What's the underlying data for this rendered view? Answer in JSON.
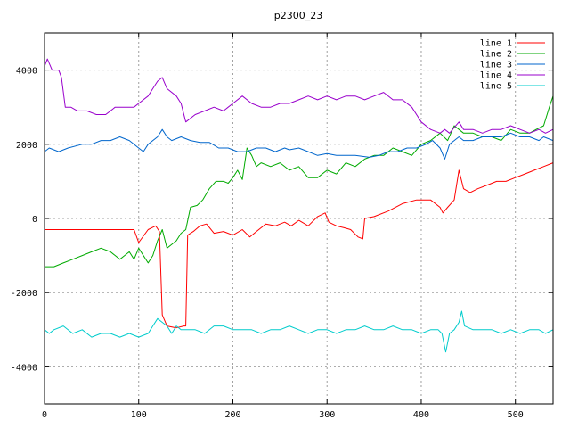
{
  "chart_data": {
    "type": "line",
    "title": "p2300_23",
    "xlabel": "",
    "ylabel": "",
    "xlim": [
      0,
      540
    ],
    "ylim": [
      -5000,
      5000
    ],
    "xticks": [
      0,
      100,
      200,
      300,
      400,
      500
    ],
    "yticks": [
      -4000,
      -2000,
      0,
      2000,
      4000
    ],
    "grid": true,
    "legend_position": "top-right",
    "series": [
      {
        "name": "line 1",
        "color": "#ff0000",
        "points": [
          [
            0,
            -300
          ],
          [
            95,
            -300
          ],
          [
            100,
            -650
          ],
          [
            110,
            -300
          ],
          [
            118,
            -200
          ],
          [
            122,
            -350
          ],
          [
            125,
            -2600
          ],
          [
            130,
            -2900
          ],
          [
            140,
            -2950
          ],
          [
            148,
            -2900
          ],
          [
            150,
            -2900
          ],
          [
            152,
            -450
          ],
          [
            158,
            -350
          ],
          [
            165,
            -200
          ],
          [
            172,
            -150
          ],
          [
            180,
            -400
          ],
          [
            190,
            -350
          ],
          [
            200,
            -450
          ],
          [
            210,
            -300
          ],
          [
            218,
            -500
          ],
          [
            225,
            -350
          ],
          [
            235,
            -150
          ],
          [
            245,
            -200
          ],
          [
            255,
            -100
          ],
          [
            262,
            -200
          ],
          [
            270,
            -50
          ],
          [
            280,
            -200
          ],
          [
            290,
            50
          ],
          [
            298,
            150
          ],
          [
            302,
            -100
          ],
          [
            310,
            -200
          ],
          [
            318,
            -250
          ],
          [
            325,
            -300
          ],
          [
            333,
            -500
          ],
          [
            338,
            -550
          ],
          [
            340,
            0
          ],
          [
            350,
            50
          ],
          [
            365,
            200
          ],
          [
            380,
            400
          ],
          [
            395,
            500
          ],
          [
            410,
            500
          ],
          [
            420,
            300
          ],
          [
            423,
            150
          ],
          [
            428,
            300
          ],
          [
            435,
            500
          ],
          [
            440,
            1300
          ],
          [
            445,
            800
          ],
          [
            452,
            700
          ],
          [
            460,
            800
          ],
          [
            470,
            900
          ],
          [
            480,
            1000
          ],
          [
            490,
            1000
          ],
          [
            500,
            1100
          ],
          [
            510,
            1200
          ],
          [
            520,
            1300
          ],
          [
            530,
            1400
          ],
          [
            540,
            1500
          ]
        ]
      },
      {
        "name": "line 2",
        "color": "#00aa00",
        "points": [
          [
            0,
            -1300
          ],
          [
            10,
            -1300
          ],
          [
            20,
            -1200
          ],
          [
            30,
            -1100
          ],
          [
            40,
            -1000
          ],
          [
            50,
            -900
          ],
          [
            60,
            -800
          ],
          [
            70,
            -900
          ],
          [
            80,
            -1100
          ],
          [
            85,
            -1000
          ],
          [
            90,
            -900
          ],
          [
            95,
            -1100
          ],
          [
            100,
            -800
          ],
          [
            110,
            -1200
          ],
          [
            115,
            -1000
          ],
          [
            120,
            -600
          ],
          [
            125,
            -300
          ],
          [
            130,
            -800
          ],
          [
            135,
            -700
          ],
          [
            140,
            -600
          ],
          [
            145,
            -400
          ],
          [
            150,
            -300
          ],
          [
            155,
            300
          ],
          [
            162,
            350
          ],
          [
            168,
            500
          ],
          [
            175,
            800
          ],
          [
            182,
            1000
          ],
          [
            190,
            1000
          ],
          [
            195,
            950
          ],
          [
            200,
            1100
          ],
          [
            205,
            1300
          ],
          [
            210,
            1050
          ],
          [
            215,
            1900
          ],
          [
            220,
            1700
          ],
          [
            225,
            1400
          ],
          [
            230,
            1500
          ],
          [
            240,
            1400
          ],
          [
            250,
            1500
          ],
          [
            260,
            1300
          ],
          [
            270,
            1400
          ],
          [
            280,
            1100
          ],
          [
            290,
            1100
          ],
          [
            300,
            1300
          ],
          [
            310,
            1200
          ],
          [
            320,
            1500
          ],
          [
            330,
            1400
          ],
          [
            340,
            1600
          ],
          [
            350,
            1700
          ],
          [
            360,
            1700
          ],
          [
            370,
            1900
          ],
          [
            380,
            1800
          ],
          [
            390,
            1700
          ],
          [
            400,
            2000
          ],
          [
            410,
            2100
          ],
          [
            420,
            2300
          ],
          [
            428,
            2100
          ],
          [
            435,
            2500
          ],
          [
            440,
            2400
          ],
          [
            445,
            2300
          ],
          [
            455,
            2300
          ],
          [
            465,
            2200
          ],
          [
            475,
            2200
          ],
          [
            485,
            2100
          ],
          [
            495,
            2400
          ],
          [
            505,
            2300
          ],
          [
            515,
            2300
          ],
          [
            522,
            2400
          ],
          [
            530,
            2500
          ],
          [
            536,
            3000
          ],
          [
            540,
            3300
          ]
        ]
      },
      {
        "name": "line 3",
        "color": "#0066cc",
        "points": [
          [
            0,
            1800
          ],
          [
            5,
            1900
          ],
          [
            15,
            1800
          ],
          [
            25,
            1900
          ],
          [
            40,
            2000
          ],
          [
            50,
            2000
          ],
          [
            60,
            2100
          ],
          [
            70,
            2100
          ],
          [
            80,
            2200
          ],
          [
            90,
            2100
          ],
          [
            100,
            1900
          ],
          [
            105,
            1800
          ],
          [
            110,
            2000
          ],
          [
            120,
            2200
          ],
          [
            125,
            2400
          ],
          [
            130,
            2200
          ],
          [
            135,
            2100
          ],
          [
            145,
            2200
          ],
          [
            155,
            2100
          ],
          [
            165,
            2050
          ],
          [
            175,
            2050
          ],
          [
            185,
            1900
          ],
          [
            195,
            1900
          ],
          [
            205,
            1800
          ],
          [
            215,
            1800
          ],
          [
            225,
            1900
          ],
          [
            235,
            1900
          ],
          [
            245,
            1800
          ],
          [
            255,
            1900
          ],
          [
            260,
            1850
          ],
          [
            270,
            1900
          ],
          [
            280,
            1800
          ],
          [
            290,
            1700
          ],
          [
            300,
            1750
          ],
          [
            310,
            1700
          ],
          [
            320,
            1700
          ],
          [
            330,
            1700
          ],
          [
            345,
            1650
          ],
          [
            355,
            1700
          ],
          [
            365,
            1800
          ],
          [
            375,
            1800
          ],
          [
            385,
            1900
          ],
          [
            395,
            1900
          ],
          [
            405,
            2000
          ],
          [
            412,
            2100
          ],
          [
            420,
            1900
          ],
          [
            425,
            1600
          ],
          [
            430,
            2000
          ],
          [
            440,
            2200
          ],
          [
            445,
            2100
          ],
          [
            455,
            2100
          ],
          [
            465,
            2200
          ],
          [
            475,
            2200
          ],
          [
            485,
            2200
          ],
          [
            495,
            2300
          ],
          [
            505,
            2200
          ],
          [
            515,
            2200
          ],
          [
            525,
            2100
          ],
          [
            530,
            2200
          ],
          [
            540,
            2100
          ]
        ]
      },
      {
        "name": "line 4",
        "color": "#9900cc",
        "points": [
          [
            0,
            4100
          ],
          [
            3,
            4300
          ],
          [
            8,
            4000
          ],
          [
            15,
            4000
          ],
          [
            18,
            3800
          ],
          [
            22,
            3000
          ],
          [
            28,
            3000
          ],
          [
            35,
            2900
          ],
          [
            45,
            2900
          ],
          [
            55,
            2800
          ],
          [
            65,
            2800
          ],
          [
            75,
            3000
          ],
          [
            85,
            3000
          ],
          [
            95,
            3000
          ],
          [
            100,
            3100
          ],
          [
            110,
            3300
          ],
          [
            115,
            3500
          ],
          [
            120,
            3700
          ],
          [
            125,
            3800
          ],
          [
            130,
            3500
          ],
          [
            140,
            3300
          ],
          [
            145,
            3100
          ],
          [
            150,
            2600
          ],
          [
            160,
            2800
          ],
          [
            170,
            2900
          ],
          [
            180,
            3000
          ],
          [
            190,
            2900
          ],
          [
            200,
            3100
          ],
          [
            210,
            3300
          ],
          [
            220,
            3100
          ],
          [
            230,
            3000
          ],
          [
            240,
            3000
          ],
          [
            250,
            3100
          ],
          [
            260,
            3100
          ],
          [
            270,
            3200
          ],
          [
            280,
            3300
          ],
          [
            290,
            3200
          ],
          [
            300,
            3300
          ],
          [
            310,
            3200
          ],
          [
            320,
            3300
          ],
          [
            330,
            3300
          ],
          [
            340,
            3200
          ],
          [
            350,
            3300
          ],
          [
            360,
            3400
          ],
          [
            370,
            3200
          ],
          [
            380,
            3200
          ],
          [
            390,
            3000
          ],
          [
            400,
            2600
          ],
          [
            410,
            2400
          ],
          [
            420,
            2300
          ],
          [
            425,
            2400
          ],
          [
            430,
            2300
          ],
          [
            440,
            2600
          ],
          [
            445,
            2400
          ],
          [
            455,
            2400
          ],
          [
            465,
            2300
          ],
          [
            475,
            2400
          ],
          [
            485,
            2400
          ],
          [
            495,
            2500
          ],
          [
            505,
            2400
          ],
          [
            515,
            2300
          ],
          [
            525,
            2400
          ],
          [
            532,
            2300
          ],
          [
            540,
            2400
          ]
        ]
      },
      {
        "name": "line 5",
        "color": "#00cccc",
        "points": [
          [
            0,
            -3000
          ],
          [
            5,
            -3100
          ],
          [
            10,
            -3000
          ],
          [
            20,
            -2900
          ],
          [
            30,
            -3100
          ],
          [
            40,
            -3000
          ],
          [
            50,
            -3200
          ],
          [
            60,
            -3100
          ],
          [
            70,
            -3100
          ],
          [
            80,
            -3200
          ],
          [
            90,
            -3100
          ],
          [
            100,
            -3200
          ],
          [
            110,
            -3100
          ],
          [
            115,
            -2900
          ],
          [
            120,
            -2700
          ],
          [
            125,
            -2800
          ],
          [
            130,
            -2900
          ],
          [
            135,
            -3100
          ],
          [
            140,
            -2900
          ],
          [
            145,
            -3000
          ],
          [
            150,
            -3000
          ],
          [
            160,
            -3000
          ],
          [
            170,
            -3100
          ],
          [
            180,
            -2900
          ],
          [
            190,
            -2900
          ],
          [
            200,
            -3000
          ],
          [
            210,
            -3000
          ],
          [
            220,
            -3000
          ],
          [
            230,
            -3100
          ],
          [
            240,
            -3000
          ],
          [
            250,
            -3000
          ],
          [
            260,
            -2900
          ],
          [
            270,
            -3000
          ],
          [
            280,
            -3100
          ],
          [
            290,
            -3000
          ],
          [
            300,
            -3000
          ],
          [
            310,
            -3100
          ],
          [
            320,
            -3000
          ],
          [
            330,
            -3000
          ],
          [
            340,
            -2900
          ],
          [
            350,
            -3000
          ],
          [
            360,
            -3000
          ],
          [
            370,
            -2900
          ],
          [
            380,
            -3000
          ],
          [
            390,
            -3000
          ],
          [
            400,
            -3100
          ],
          [
            410,
            -3000
          ],
          [
            418,
            -3000
          ],
          [
            422,
            -3100
          ],
          [
            426,
            -3600
          ],
          [
            430,
            -3100
          ],
          [
            435,
            -3000
          ],
          [
            440,
            -2800
          ],
          [
            443,
            -2500
          ],
          [
            446,
            -2900
          ],
          [
            455,
            -3000
          ],
          [
            465,
            -3000
          ],
          [
            475,
            -3000
          ],
          [
            485,
            -3100
          ],
          [
            495,
            -3000
          ],
          [
            505,
            -3100
          ],
          [
            515,
            -3000
          ],
          [
            525,
            -3000
          ],
          [
            532,
            -3100
          ],
          [
            540,
            -3000
          ]
        ]
      }
    ]
  }
}
